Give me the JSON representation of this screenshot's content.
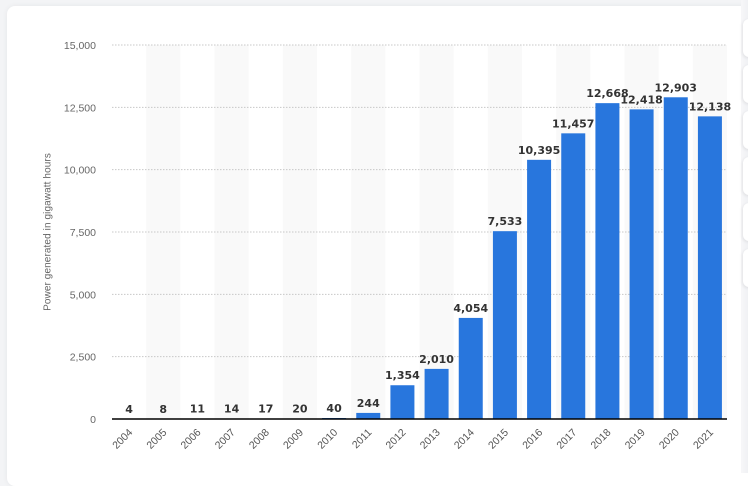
{
  "chart_data": {
    "type": "bar",
    "title": "",
    "xlabel": "",
    "ylabel": "Power generated in gigawatt hours",
    "categories": [
      "2004",
      "2005",
      "2006",
      "2007",
      "2008",
      "2009",
      "2010",
      "2011",
      "2012",
      "2013",
      "2014",
      "2015",
      "2016",
      "2017",
      "2018",
      "2019",
      "2020",
      "2021"
    ],
    "values": [
      4,
      8,
      11,
      14,
      17,
      20,
      40,
      244,
      1354,
      2010,
      4054,
      7533,
      10395,
      11457,
      12668,
      12418,
      12903,
      12138
    ],
    "value_labels": [
      "4",
      "8",
      "11",
      "14",
      "17",
      "20",
      "40",
      "244",
      "1,354",
      "2,010",
      "4,054",
      "7,533",
      "10,395",
      "11,457",
      "12,668",
      "12,418",
      "12,903",
      "12,138"
    ],
    "ylim": [
      0,
      15000
    ],
    "yticks": [
      0,
      2500,
      5000,
      7500,
      10000,
      12500,
      15000
    ],
    "ytick_labels": [
      "0",
      "2,500",
      "5,000",
      "7,500",
      "10,000",
      "12,500",
      "15,000"
    ],
    "grid": true,
    "legend": null,
    "bar_color": "#2876dd"
  },
  "ui": {
    "ylabel_text": "Power generated in gigawatt hours",
    "side_buttons": 6
  }
}
